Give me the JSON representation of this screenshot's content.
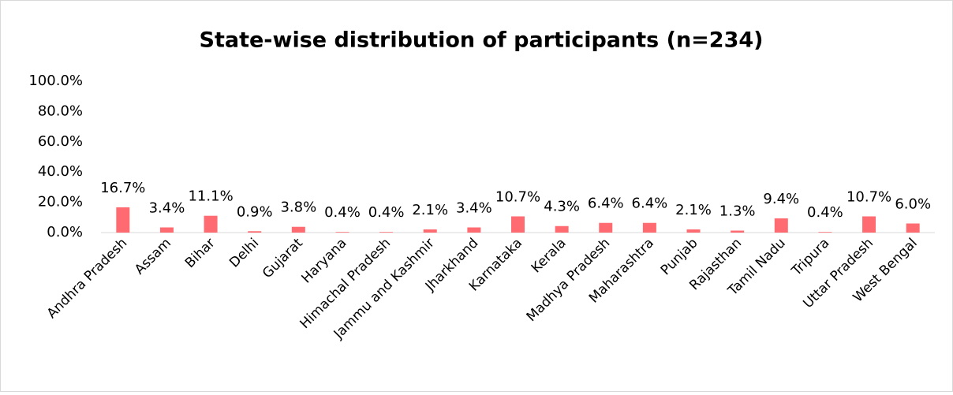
{
  "chart_data": {
    "type": "bar",
    "title": "State-wise distribution of participants (n=234)",
    "categories": [
      "Andhra Pradesh",
      "Assam",
      "Bihar",
      "Delhi",
      "Gujarat",
      "Haryana",
      "Himachal Pradesh",
      "Jammu and Kashmir",
      "Jharkhand",
      "Karnataka",
      "Kerala",
      "Madhya Pradesh",
      "Maharashtra",
      "Punjab",
      "Rajasthan",
      "Tamil Nadu",
      "Tripura",
      "Uttar Pradesh",
      "West Bengal"
    ],
    "values": [
      16.7,
      3.4,
      11.1,
      0.9,
      3.8,
      0.4,
      0.4,
      2.1,
      3.4,
      10.7,
      4.3,
      6.4,
      6.4,
      2.1,
      1.3,
      9.4,
      0.4,
      10.7,
      6.0
    ],
    "value_labels": [
      "16.7%",
      "3.4%",
      "11.1%",
      "0.9%",
      "3.8%",
      "0.4%",
      "0.4%",
      "2.1%",
      "3.4%",
      "10.7%",
      "4.3%",
      "6.4%",
      "6.4%",
      "2.1%",
      "1.3%",
      "9.4%",
      "0.4%",
      "10.7%",
      "6.0%"
    ],
    "color": "#ff6b70",
    "ylim": [
      0,
      100
    ],
    "yticks": [
      {
        "value": 0,
        "label": "0.0%"
      },
      {
        "value": 20,
        "label": "20.0%"
      },
      {
        "value": 40,
        "label": "40.0%"
      },
      {
        "value": 60,
        "label": "60.0%"
      },
      {
        "value": 80,
        "label": "80.0%"
      },
      {
        "value": 100,
        "label": "100.0%"
      }
    ],
    "grid": false
  }
}
